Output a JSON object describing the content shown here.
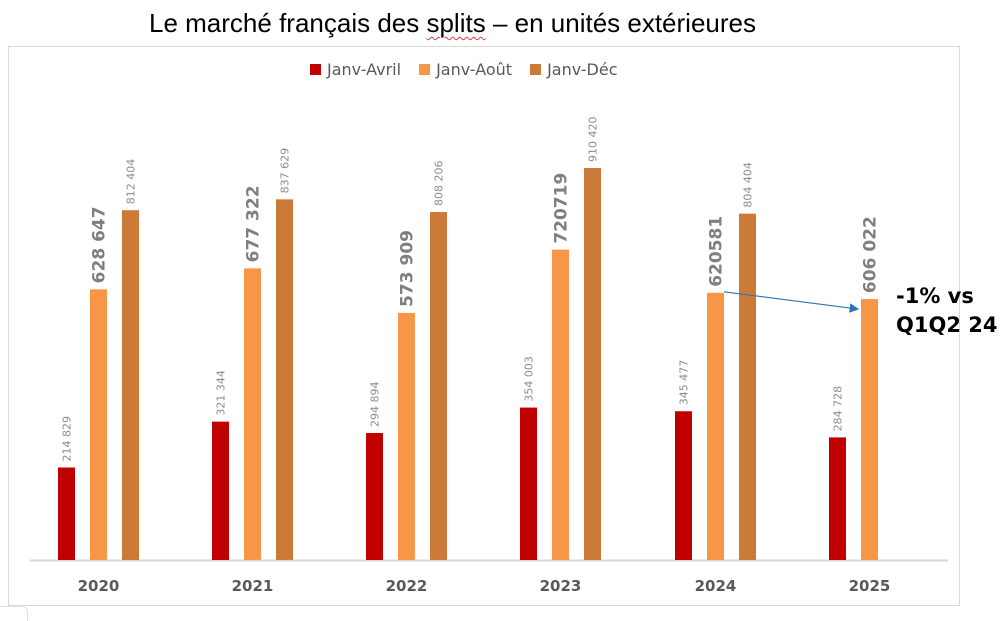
{
  "chart_data": {
    "type": "bar",
    "title": "Le marché français des splits – en unités extérieures",
    "title_parts": [
      "Le marché français des ",
      "splits",
      " – en unités extérieures"
    ],
    "xlabel": "",
    "ylabel": "",
    "ylim": [
      0,
      1000000
    ],
    "grid": false,
    "legend_position": "top-center",
    "categories": [
      "2020",
      "2021",
      "2022",
      "2023",
      "2024",
      "2025"
    ],
    "series": [
      {
        "name": "Janv-Avril",
        "color": "#C00000",
        "values": [
          214829,
          321344,
          294894,
          354003,
          345477,
          284728
        ],
        "labels": [
          "214 829",
          "321 344",
          "294 894",
          "354 003",
          "345 477",
          "284 728"
        ],
        "label_style": "small"
      },
      {
        "name": "Janv-Août",
        "color": "#F79646",
        "values": [
          628647,
          677322,
          573909,
          720719,
          620581,
          606022
        ],
        "labels": [
          "628 647",
          "677 322",
          "573 909",
          "720719",
          "620581",
          "606 022"
        ],
        "label_style": "bold"
      },
      {
        "name": "Janv-Déc",
        "color": "#CC7A38",
        "values": [
          812404,
          837629,
          808206,
          910420,
          804404,
          null
        ],
        "labels": [
          "812 404",
          "837 629",
          "808 206",
          "910 420",
          "804 404",
          null
        ],
        "label_style": "small"
      }
    ],
    "annotations": [
      {
        "text_lines": [
          "-1% vs",
          "Q1Q2 24"
        ],
        "arrow_from": {
          "category": "2024",
          "series": "Janv-Août"
        },
        "arrow_to": {
          "category": "2025",
          "series": "Janv-Août"
        },
        "arrow_color": "#2E75B6"
      }
    ]
  }
}
